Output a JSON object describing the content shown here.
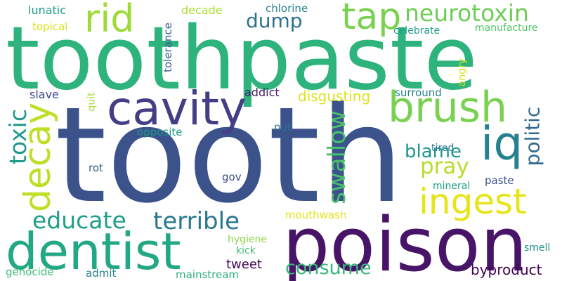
{
  "words": [
    {
      "text": "toothpaste",
      "color": "#2eb37c",
      "vertical": false
    },
    {
      "text": "tooth",
      "color": "#3b528b",
      "vertical": false
    },
    {
      "text": "poison",
      "color": "#481467",
      "vertical": false
    },
    {
      "text": "dentist",
      "color": "#22a884",
      "vertical": false
    },
    {
      "text": "cavity",
      "color": "#433e85",
      "vertical": false
    },
    {
      "text": "brush",
      "color": "#7ad151",
      "vertical": false
    },
    {
      "text": "tap",
      "color": "#7ad151",
      "vertical": false
    },
    {
      "text": "neurotoxin",
      "color": "#6ece58",
      "vertical": false
    },
    {
      "text": "rid",
      "color": "#a0da39",
      "vertical": false
    },
    {
      "text": "iq",
      "color": "#26818e",
      "vertical": false
    },
    {
      "text": "ingest",
      "color": "#e7e419",
      "vertical": false
    },
    {
      "text": "decay",
      "color": "#bddf26",
      "vertical": true
    },
    {
      "text": "toxic",
      "color": "#1f988b",
      "vertical": true
    },
    {
      "text": "swallow",
      "color": "#4ac16d",
      "vertical": true
    },
    {
      "text": "politic",
      "color": "#31688e",
      "vertical": true
    },
    {
      "text": "educate",
      "color": "#1f9e89",
      "vertical": false
    },
    {
      "text": "terrible",
      "color": "#2a788e",
      "vertical": false
    },
    {
      "text": "consume",
      "color": "#35b779",
      "vertical": false
    },
    {
      "text": "dump",
      "color": "#2c728e",
      "vertical": false
    },
    {
      "text": "blame",
      "color": "#1f968b",
      "vertical": false
    },
    {
      "text": "pray",
      "color": "#b5de2b",
      "vertical": false
    },
    {
      "text": "byproduct",
      "color": "#440154",
      "vertical": false
    },
    {
      "text": "disgusting",
      "color": "#dde318",
      "vertical": false
    },
    {
      "text": "tweet",
      "color": "#440154",
      "vertical": false
    },
    {
      "text": "lunatic",
      "color": "#1f9e89",
      "vertical": false
    },
    {
      "text": "decade",
      "color": "#addc30",
      "vertical": false
    },
    {
      "text": "chlorine",
      "color": "#26828e",
      "vertical": false
    },
    {
      "text": "topical",
      "color": "#d8e219",
      "vertical": false
    },
    {
      "text": "celebrate",
      "color": "#1f9e89",
      "vertical": false
    },
    {
      "text": "manufacture",
      "color": "#54c568",
      "vertical": false
    },
    {
      "text": "tolerance",
      "color": "#34618d",
      "vertical": true
    },
    {
      "text": "angry",
      "color": "#d8e219",
      "vertical": true
    },
    {
      "text": "quit",
      "color": "#a5db36",
      "vertical": true
    },
    {
      "text": "slave",
      "color": "#3e4989",
      "vertical": false
    },
    {
      "text": "addict",
      "color": "#481a6c",
      "vertical": false
    },
    {
      "text": "surround",
      "color": "#26828e",
      "vertical": false
    },
    {
      "text": "opposite",
      "color": "#1f958b",
      "vertical": false
    },
    {
      "text": "nut",
      "color": "#2c728e",
      "vertical": false
    },
    {
      "text": "tired",
      "color": "#2a778e",
      "vertical": false
    },
    {
      "text": "rot",
      "color": "#355f8d",
      "vertical": false
    },
    {
      "text": "gov",
      "color": "#3e4989",
      "vertical": false
    },
    {
      "text": "mineral",
      "color": "#1fa187",
      "vertical": false
    },
    {
      "text": "paste",
      "color": "#3b528b",
      "vertical": false
    },
    {
      "text": "mouthwash",
      "color": "#e5e419",
      "vertical": false
    },
    {
      "text": "hygiene",
      "color": "#8ed645",
      "vertical": false
    },
    {
      "text": "kick",
      "color": "#3fbc73",
      "vertical": false
    },
    {
      "text": "smell",
      "color": "#21918c",
      "vertical": false
    },
    {
      "text": "genocide",
      "color": "#3dbc74",
      "vertical": false
    },
    {
      "text": "admit",
      "color": "#25848e",
      "vertical": false
    },
    {
      "text": "mainstream",
      "color": "#2db27d",
      "vertical": false
    }
  ]
}
